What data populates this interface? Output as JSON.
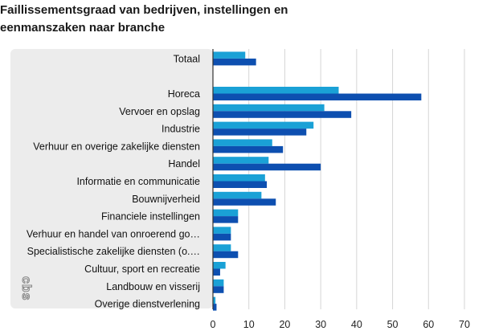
{
  "chart_data": {
    "type": "bar",
    "orientation": "horizontal",
    "title": "Faillissementsgraad van bedrijven, instellingen en eenmanszaken naar branche",
    "categories": [
      "Totaal",
      "",
      "Horeca",
      "Vervoer en opslag",
      "Industrie",
      "Verhuur en overige zakelijke diensten",
      "Handel",
      "Informatie en communicatie",
      "Bouwnijverheid",
      "Financiele instellingen",
      "Verhuur en handel van onroerend go…",
      "Specialistische zakelijke diensten (o.…",
      "Cultuur, sport en recreatie",
      "Landbouw en visserij",
      "Overige dienstverlening"
    ],
    "series": [
      {
        "color": "#1aa1d6",
        "values": [
          9,
          null,
          35,
          31,
          28,
          16.5,
          15.5,
          14.5,
          13.5,
          7,
          5,
          5,
          3.5,
          3,
          0.7
        ]
      },
      {
        "color": "#0d4fb0",
        "values": [
          12,
          null,
          58,
          38.5,
          26,
          19.5,
          30,
          15,
          17.5,
          7,
          5,
          7,
          2,
          3,
          1
        ]
      }
    ],
    "xlim": [
      0,
      70
    ],
    "xticks": [
      0,
      10,
      20,
      30,
      40,
      50,
      60,
      70
    ],
    "grid": true
  },
  "colors": {
    "label_panel": "#ececec",
    "grid": "#d6d6d6",
    "axis": "#333333"
  },
  "logo": {
    "icon": "cbs-logo-icon",
    "text": "cbs"
  }
}
